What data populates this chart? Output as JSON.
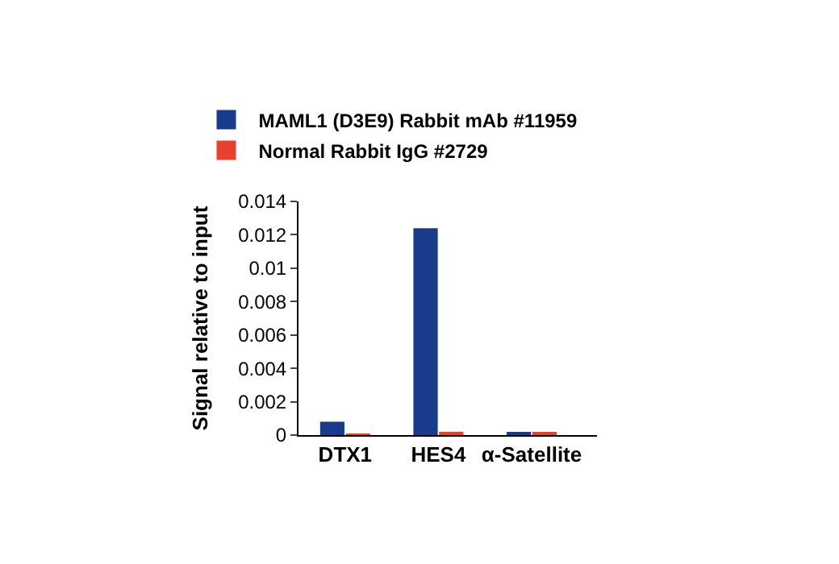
{
  "chart_data": {
    "type": "bar",
    "ylabel": "Signal relative to input",
    "categories": [
      "DTX1",
      "HES4",
      "α-Satellite"
    ],
    "series": [
      {
        "name": "MAML1 (D3E9) Rabbit mAb #11959",
        "color": "#183b8c",
        "values": [
          0.0008,
          0.0124,
          0.0001
        ]
      },
      {
        "name": "Normal Rabbit IgG #2729",
        "color": "#e8402f",
        "values": [
          5e-05,
          0.0002,
          0.0001
        ]
      }
    ],
    "ylim": [
      0,
      0.014
    ],
    "yticks": [
      0,
      0.002,
      0.004,
      0.006,
      0.008,
      {
        "value": 0.01,
        "label": "0.01"
      },
      0.012,
      0.014
    ],
    "legend": "top left"
  }
}
